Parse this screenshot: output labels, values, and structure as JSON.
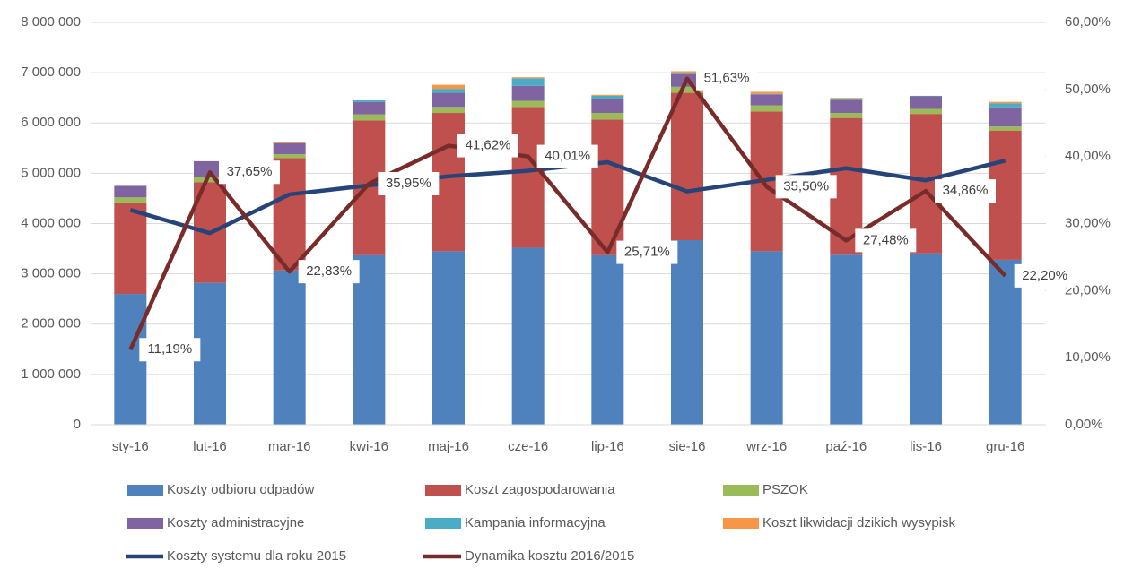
{
  "chart_data": {
    "type": "bar",
    "stacked": true,
    "categories": [
      "sty-16",
      "lut-16",
      "mar-16",
      "kwi-16",
      "maj-16",
      "cze-16",
      "lip-16",
      "sie-16",
      "wrz-16",
      "paź-16",
      "lis-16",
      "gru-16"
    ],
    "series": [
      {
        "name": "Koszty odbioru odpadów",
        "color": "#4f81bd",
        "values": [
          2600000,
          2820000,
          3070000,
          3370000,
          3450000,
          3520000,
          3370000,
          3670000,
          3450000,
          3380000,
          3410000,
          3280000
        ]
      },
      {
        "name": "Koszt zagospodarowania",
        "color": "#c0504d",
        "values": [
          1820000,
          2000000,
          2230000,
          2680000,
          2750000,
          2800000,
          2700000,
          2930000,
          2780000,
          2720000,
          2770000,
          2570000
        ]
      },
      {
        "name": "PSZOK",
        "color": "#9bbb59",
        "values": [
          100000,
          100000,
          80000,
          120000,
          120000,
          120000,
          130000,
          120000,
          120000,
          100000,
          100000,
          80000
        ]
      },
      {
        "name": "Koszty administracyjne",
        "color": "#8064a2",
        "values": [
          230000,
          320000,
          220000,
          250000,
          280000,
          300000,
          280000,
          250000,
          220000,
          250000,
          250000,
          380000
        ]
      },
      {
        "name": "Kampania informacyjna",
        "color": "#4bacc6",
        "values": [
          0,
          0,
          0,
          30000,
          80000,
          150000,
          60000,
          20000,
          10000,
          20000,
          10000,
          80000
        ]
      },
      {
        "name": "Koszt likwidacji dzikich wysypisk",
        "color": "#f79646",
        "values": [
          0,
          0,
          20000,
          0,
          80000,
          20000,
          20000,
          40000,
          40000,
          30000,
          0,
          30000
        ]
      },
      {
        "name": "Koszty systemu dla roku 2015",
        "color": "#264478",
        "type": "line",
        "values": [
          4270000,
          3810000,
          4580000,
          4760000,
          4940000,
          5050000,
          5220000,
          4640000,
          4870000,
          5100000,
          4860000,
          5250000
        ]
      },
      {
        "name": "Dynamika kosztu 2016/2015",
        "color": "#772c2a",
        "type": "line",
        "axis": "y2",
        "values": [
          11.19,
          37.65,
          22.83,
          35.95,
          41.62,
          40.01,
          25.71,
          51.63,
          35.5,
          27.48,
          34.86,
          22.2
        ],
        "value_labels": [
          "11,19%",
          "37,65%",
          "22,83%",
          "35,95%",
          "41,62%",
          "40,01%",
          "25,71%",
          "51,63%",
          "35,50%",
          "27,48%",
          "34,86%",
          "22,20%"
        ]
      }
    ],
    "ylim": [
      0,
      8000000
    ],
    "yticks": [
      0,
      {
        "value": 1000000,
        "label": "1 000 000"
      },
      {
        "value": 2000000,
        "label": "2 000 000"
      },
      {
        "value": 3000000,
        "label": "3 000 000"
      },
      {
        "value": 4000000,
        "label": "4 000 000"
      },
      {
        "value": 5000000,
        "label": "5 000 000"
      },
      {
        "value": 6000000,
        "label": "6 000 000"
      },
      {
        "value": 7000000,
        "label": "7 000 000"
      },
      {
        "value": 8000000,
        "label": "8 000 000"
      }
    ],
    "y2lim": [
      0,
      60
    ],
    "y2ticks": [
      {
        "value": 0,
        "label": "0,00%"
      },
      {
        "value": 10,
        "label": "10,00%"
      },
      {
        "value": 20,
        "label": "20,00%"
      },
      {
        "value": 30,
        "label": "30,00%"
      },
      {
        "value": 40,
        "label": "40,00%"
      },
      {
        "value": 50,
        "label": "50,00%"
      },
      {
        "value": 60,
        "label": "60,00%"
      }
    ],
    "grid": true,
    "legend": "bottom"
  }
}
